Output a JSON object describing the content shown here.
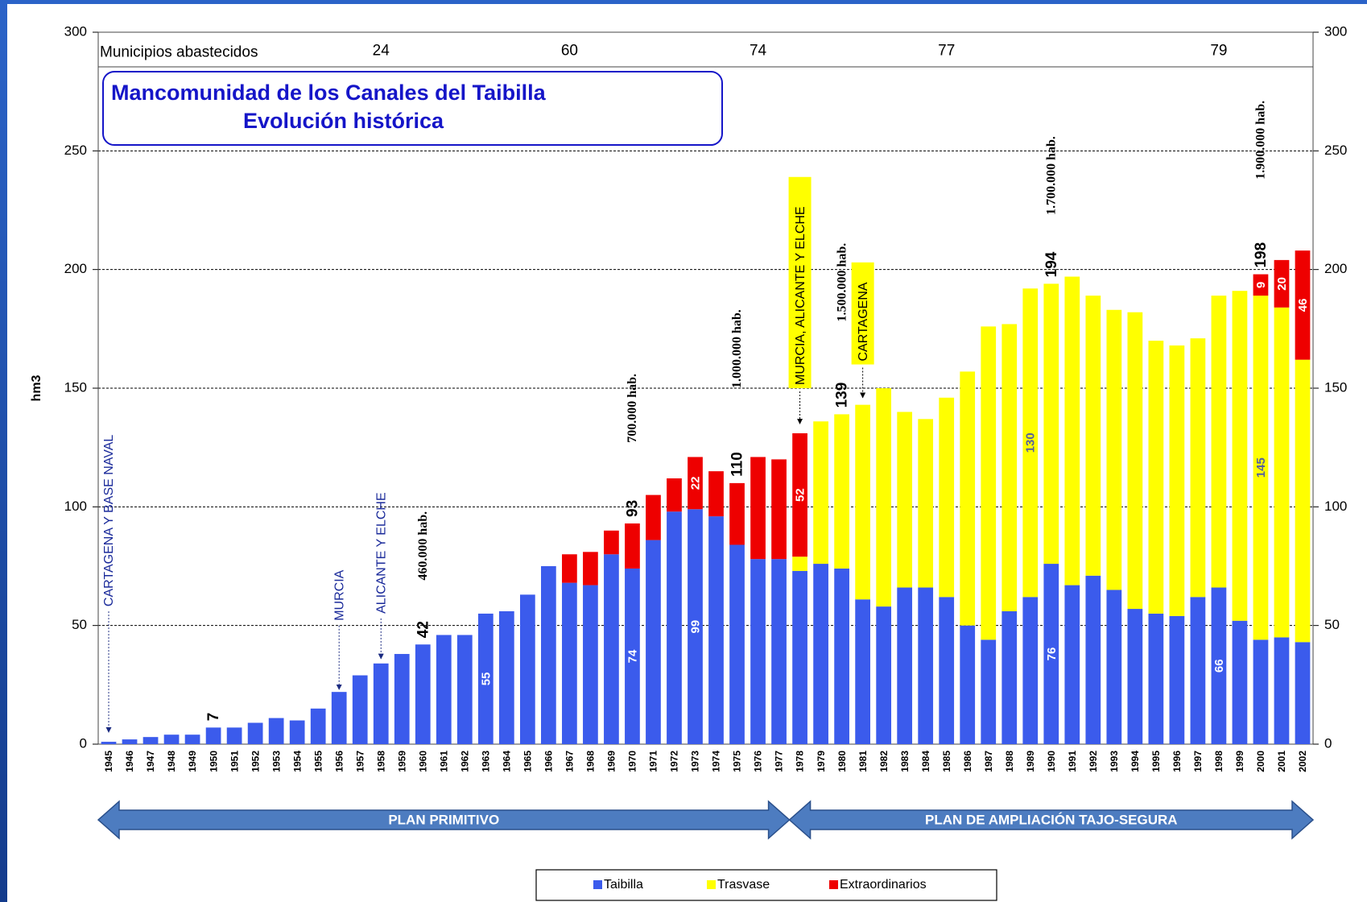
{
  "chart_data": {
    "type": "stacked_bar",
    "title": [
      "Mancomunidad de los Canales del Taibilla",
      "Evolución histórica"
    ],
    "y_label": "hm3",
    "categories": [
      "1945",
      "1946",
      "1947",
      "1948",
      "1949",
      "1950",
      "1951",
      "1952",
      "1953",
      "1954",
      "1955",
      "1956",
      "1957",
      "1958",
      "1959",
      "1960",
      "1961",
      "1962",
      "1963",
      "1964",
      "1965",
      "1966",
      "1967",
      "1968",
      "1969",
      "1970",
      "1971",
      "1972",
      "1973",
      "1974",
      "1975",
      "1976",
      "1977",
      "1978",
      "1979",
      "1980",
      "1981",
      "1982",
      "1983",
      "1984",
      "1985",
      "1986",
      "1987",
      "1988",
      "1989",
      "1990",
      "1991",
      "1992",
      "1993",
      "1994",
      "1995",
      "1996",
      "1997",
      "1998",
      "1999",
      "2000",
      "2001",
      "2002"
    ],
    "series": [
      {
        "name": "Taibilla",
        "color": "#3b5bec",
        "values": [
          1,
          2,
          3,
          4,
          4,
          7,
          7,
          9,
          11,
          10,
          15,
          22,
          29,
          34,
          38,
          42,
          46,
          46,
          55,
          56,
          63,
          75,
          68,
          67,
          80,
          74,
          86,
          98,
          99,
          96,
          84,
          78,
          78,
          73,
          76,
          74,
          61,
          58,
          66,
          66,
          62,
          50,
          44,
          56,
          62,
          76,
          67,
          71,
          65,
          57,
          55,
          54,
          62,
          66,
          52,
          44,
          45,
          43
        ],
        "value_labels": {
          "18": "55",
          "25": "74",
          "28": "99",
          "45": "76",
          "53": "66"
        }
      },
      {
        "name": "Trasvase",
        "color": "#ffff00",
        "values": [
          null,
          null,
          null,
          null,
          null,
          null,
          null,
          null,
          null,
          null,
          null,
          null,
          null,
          null,
          null,
          null,
          null,
          null,
          null,
          null,
          null,
          null,
          null,
          null,
          null,
          null,
          null,
          null,
          null,
          null,
          null,
          null,
          null,
          6,
          60,
          65,
          82,
          92,
          74,
          71,
          84,
          107,
          132,
          121,
          130,
          118,
          130,
          118,
          118,
          125,
          115,
          114,
          109,
          123,
          139,
          145,
          139,
          119
        ],
        "value_labels": {
          "44": "130",
          "55": "145"
        }
      },
      {
        "name": "Extraordinarios",
        "color": "#ee0000",
        "values": [
          null,
          null,
          null,
          null,
          null,
          null,
          null,
          null,
          null,
          null,
          null,
          null,
          null,
          null,
          null,
          null,
          null,
          null,
          null,
          null,
          null,
          null,
          12,
          14,
          10,
          19,
          19,
          14,
          22,
          19,
          26,
          43,
          42,
          52,
          null,
          null,
          null,
          null,
          null,
          null,
          null,
          null,
          null,
          null,
          null,
          null,
          null,
          null,
          null,
          null,
          null,
          null,
          null,
          null,
          null,
          9,
          20,
          46
        ],
        "value_labels": {
          "28": "22",
          "33": "52",
          "55": "9",
          "56": "20",
          "57": "46"
        }
      }
    ],
    "totals": {
      "5": 7,
      "15": 42,
      "25": 93,
      "30": 110,
      "35": 139,
      "45": 194,
      "55": 198
    },
    "ylim": [
      0,
      300
    ],
    "yticks": [
      0,
      50,
      100,
      150,
      200,
      250,
      300
    ],
    "y2lim": [
      0,
      300
    ],
    "y2ticks": [
      0,
      50,
      100,
      150,
      200,
      250,
      300
    ],
    "grid": true,
    "municipios": {
      "label": "Municipios abastecidos",
      "values": [
        {
          "category": "1958",
          "value": 24
        },
        {
          "category": "1967",
          "value": 60
        },
        {
          "category": "1976",
          "value": 74
        },
        {
          "category": "1985",
          "value": 77
        },
        {
          "category": "1998",
          "value": 79
        }
      ]
    },
    "annotations": [
      {
        "category": "1945",
        "text": "CARTAGENA  Y BASE NAVAL"
      },
      {
        "category": "1956",
        "text": "MURCIA"
      },
      {
        "category": "1958",
        "text": "ALICANTE  Y ELCHE"
      },
      {
        "category": "1960",
        "text": "460.000 hab."
      },
      {
        "category": "1970",
        "text": "700.000 hab."
      },
      {
        "category": "1975",
        "text": "1.000.000 hab."
      },
      {
        "category": "1978",
        "text": "MURCIA, ALICANTE Y ELCHE"
      },
      {
        "category": "1980",
        "text": "1.500.000 hab."
      },
      {
        "category": "1981",
        "text": "CARTAGENA"
      },
      {
        "category": "1990",
        "text": "1.700.000 hab."
      },
      {
        "category": "2000",
        "text": "1.900.000 hab."
      }
    ],
    "periods": [
      {
        "label": "PLAN PRIMITIVO",
        "from": "1945",
        "to": "1977"
      },
      {
        "label": "PLAN DE AMPLIACIÓN TAJO-SEGURA",
        "from": "1978",
        "to": "2002"
      }
    ],
    "legend": "bottom"
  }
}
